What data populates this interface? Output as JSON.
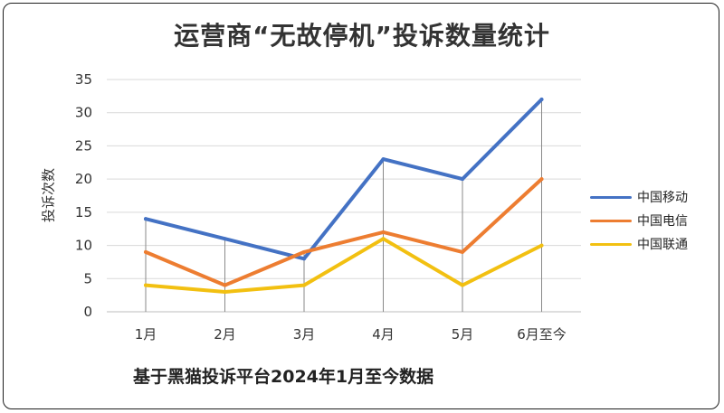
{
  "chart_data": {
    "type": "line",
    "title": "运营商“无故停机”投诉数量统计",
    "ylabel": "投诉次数",
    "xlabel": "",
    "note": "基于黑猫投诉平台2024年1月至今数据",
    "categories": [
      "1月",
      "2月",
      "3月",
      "4月",
      "5月",
      "6月至今"
    ],
    "ylim": [
      0,
      35
    ],
    "yticks": [
      0,
      5,
      10,
      15,
      20,
      25,
      30,
      35
    ],
    "grid": "horizontal",
    "legend_position": "right",
    "series": [
      {
        "name": "中国移动",
        "color": "#4472c4",
        "values": [
          14,
          11,
          8,
          23,
          20,
          32
        ]
      },
      {
        "name": "中国电信",
        "color": "#ed7d31",
        "values": [
          9,
          4,
          9,
          12,
          9,
          20
        ]
      },
      {
        "name": "中国联通",
        "color": "#f2c011",
        "values": [
          4,
          3,
          4,
          11,
          4,
          10
        ]
      }
    ]
  }
}
